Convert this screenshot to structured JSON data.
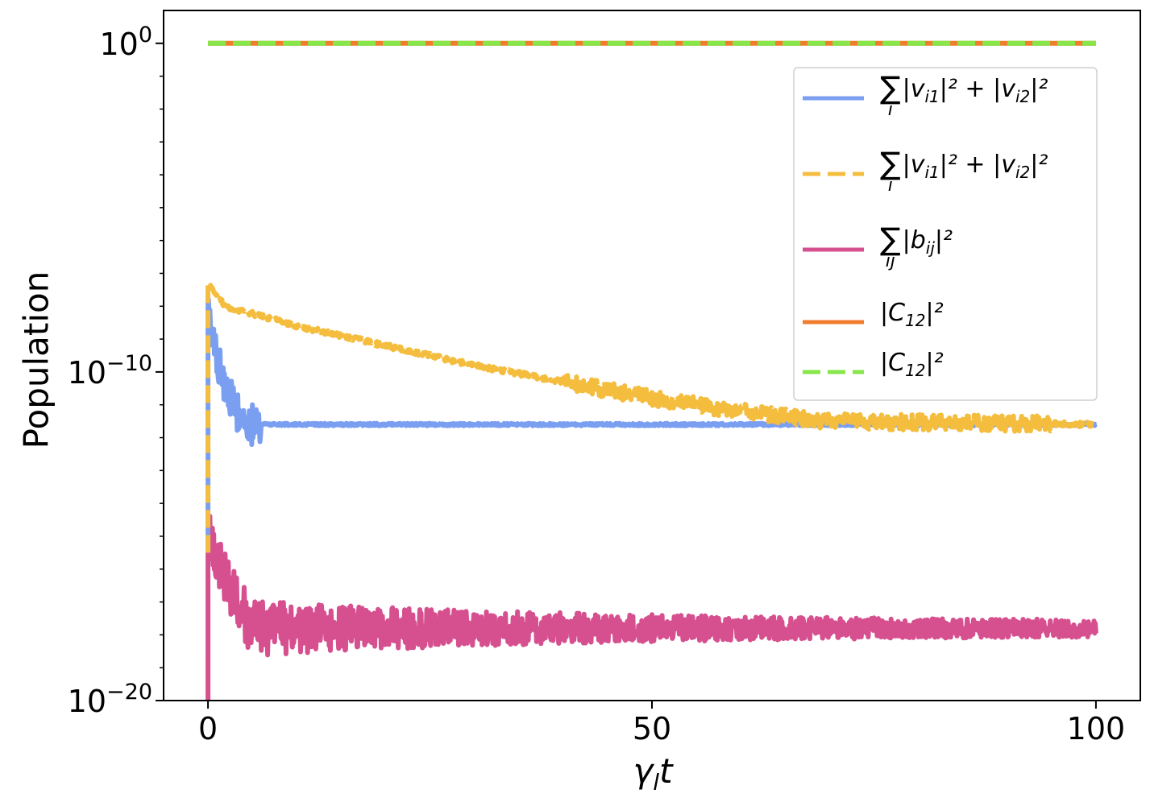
{
  "chart_data": {
    "type": "line",
    "xlabel": "γ_l t",
    "ylabel": "Population",
    "xlim": [
      -5,
      105
    ],
    "ylim_log10": [
      -20,
      1
    ],
    "yscale": "log",
    "x_ticks": [
      0,
      50,
      100
    ],
    "y_ticks": [
      {
        "base": "10",
        "exp": "0",
        "value_log10": 0
      },
      {
        "base": "10",
        "exp": "−10",
        "value_log10": -10
      },
      {
        "base": "10",
        "exp": "−20",
        "value_log10": -20
      }
    ],
    "legend_position": "upper-right",
    "series": [
      {
        "legend": {
          "sum_sub": "i",
          "expr_html": "|v<sub>i1</sub>|² + |v<sub>i2</sub>|²"
        },
        "color": "#7b9ff0",
        "style": "solid",
        "kind": "decay",
        "log10_points": [
          [
            0,
            -8
          ],
          [
            0.5,
            -9.2
          ],
          [
            1.5,
            -10
          ],
          [
            2.5,
            -10.8
          ],
          [
            3.5,
            -11.4
          ],
          [
            5,
            -11.6
          ],
          [
            100,
            -11.6
          ]
        ],
        "noise": 0.25
      },
      {
        "legend": {
          "sum_sub": "i",
          "expr_html": "|v<sub>i1</sub>|² + |v<sub>i2</sub>|²"
        },
        "color": "#f4bd3d",
        "style": "dashed",
        "kind": "decay",
        "log10_points": [
          [
            0,
            -7.3
          ],
          [
            1,
            -7.7
          ],
          [
            2,
            -8
          ],
          [
            10,
            -8.6
          ],
          [
            30,
            -9.8
          ],
          [
            50,
            -10.8
          ],
          [
            60,
            -11.2
          ],
          [
            70,
            -11.5
          ],
          [
            100,
            -11.6
          ]
        ],
        "noise": 0.15
      },
      {
        "legend": {
          "sum_sub": "ij",
          "expr_html": "|b<sub>ij</sub>|²"
        },
        "color": "#d6508f",
        "style": "solid",
        "kind": "oscillating",
        "log10_points": [
          [
            0,
            -15.2
          ],
          [
            5,
            -17.8
          ],
          [
            100,
            -17.8
          ]
        ],
        "noise": 0.6
      },
      {
        "legend": {
          "sum_sub": "",
          "expr_html": "|C<sub>12</sub>|²"
        },
        "color": "#f07c2e",
        "style": "solid",
        "kind": "flat",
        "log10_points": [
          [
            0,
            0
          ],
          [
            100,
            0
          ]
        ],
        "noise": 0
      },
      {
        "legend": {
          "sum_sub": "",
          "expr_html": "|C<sub>12</sub>|²"
        },
        "color": "#86e64a",
        "style": "dashed",
        "kind": "flat",
        "log10_points": [
          [
            0,
            0
          ],
          [
            100,
            0
          ]
        ],
        "noise": 0
      }
    ]
  }
}
